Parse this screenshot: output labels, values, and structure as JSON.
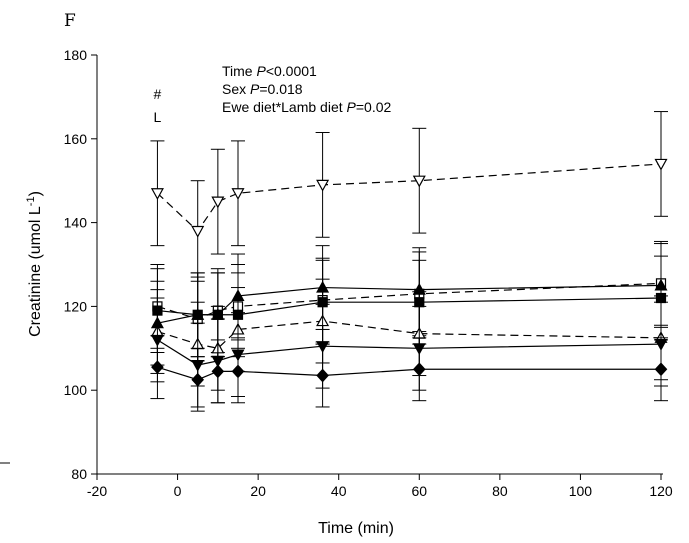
{
  "panel_label": "F",
  "chart_data": {
    "type": "line",
    "title": "",
    "xlabel": "Time (min)",
    "ylabel_main": "Creatinine (umol L",
    "ylabel_sup": "-1",
    "ylabel_tail": ")",
    "xlim": [
      -20,
      120
    ],
    "ylim": [
      80,
      180
    ],
    "xticks": [
      -20,
      0,
      20,
      40,
      60,
      80,
      100,
      120
    ],
    "yticks": [
      80,
      100,
      120,
      140,
      160,
      180
    ],
    "x": [
      -5,
      5,
      10,
      15,
      36,
      60,
      120
    ],
    "annotations": [
      {
        "parts": [
          {
            "t": "Time "
          },
          {
            "t": "P",
            "italic": true
          },
          {
            "t": "<0.0001"
          }
        ]
      },
      {
        "parts": [
          {
            "t": "Sex "
          },
          {
            "t": "P",
            "italic": true
          },
          {
            "t": "=0.018"
          }
        ]
      },
      {
        "parts": [
          {
            "t": "Ewe diet*Lamb diet "
          },
          {
            "t": "P",
            "italic": true
          },
          {
            "t": "=0.02"
          }
        ]
      }
    ],
    "markers_text": [
      {
        "text": "#",
        "x": -5,
        "y": 169.5
      },
      {
        "text": "L",
        "x": -5,
        "y": 164
      }
    ],
    "series": [
      {
        "marker": "triangle-down",
        "fill": "open",
        "dash": true,
        "values": [
          147,
          138,
          145,
          147,
          149,
          150,
          154
        ],
        "err": [
          12.5,
          12,
          12.5,
          12.5,
          12.5,
          12.5,
          12.5
        ]
      },
      {
        "marker": "square",
        "fill": "open",
        "dash": true,
        "values": [
          120,
          117,
          119,
          120,
          121.5,
          123,
          125.5
        ],
        "err": [
          10,
          10,
          10,
          10,
          10,
          10,
          10
        ]
      },
      {
        "marker": "triangle-up",
        "fill": "filled",
        "dash": false,
        "values": [
          116,
          118,
          118,
          122.5,
          124.5,
          124,
          125
        ],
        "err": [
          10,
          10,
          10,
          10,
          10,
          10,
          10
        ]
      },
      {
        "marker": "square",
        "fill": "filled",
        "dash": false,
        "values": [
          119,
          118,
          118,
          118,
          121,
          121,
          122
        ],
        "err": [
          10,
          10,
          10,
          10,
          10,
          10,
          10
        ]
      },
      {
        "marker": "triangle-up",
        "fill": "open",
        "dash": true,
        "values": [
          114,
          111,
          110,
          114.5,
          116.5,
          113.5,
          112.5
        ],
        "err": [
          10,
          10,
          10,
          10,
          10,
          10,
          10
        ]
      },
      {
        "marker": "triangle-down",
        "fill": "filled",
        "dash": false,
        "values": [
          112,
          106,
          107,
          108.5,
          110.5,
          110,
          111
        ],
        "err": [
          10,
          10,
          10,
          10,
          10,
          10,
          10
        ]
      },
      {
        "marker": "diamond",
        "fill": "filled",
        "dash": false,
        "values": [
          105.5,
          102.5,
          104.5,
          104.5,
          103.5,
          105,
          105
        ],
        "err": [
          7.5,
          7.5,
          7.5,
          7.5,
          7.5,
          7.5,
          7.5
        ]
      }
    ]
  }
}
